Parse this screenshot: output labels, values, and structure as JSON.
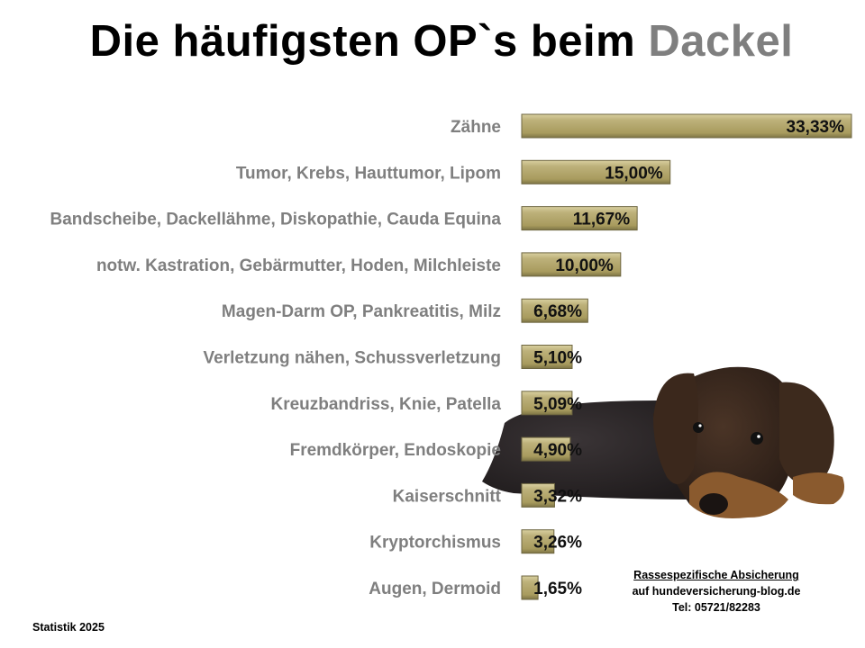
{
  "title": {
    "main": "Die häufigsten OP`s beim ",
    "accent": "Dackel"
  },
  "colors": {
    "bar": "#b5a96e",
    "bar_border": "#6e6640",
    "accent_title": "#7f7f7f",
    "category_text": "#7f7f7f"
  },
  "chart_data": {
    "type": "bar",
    "orientation": "horizontal",
    "categories": [
      "Zähne",
      "Tumor, Krebs, Hauttumor, Lipom",
      "Bandscheibe, Dackellähme, Diskopathie, Cauda Equina",
      "notw. Kastration, Gebärmutter, Hoden, Milchleiste",
      "Magen-Darm OP, Pankreatitis, Milz",
      "Verletzung nähen, Schussverletzung",
      "Kreuzbandriss, Knie, Patella",
      "Fremdkörper, Endoskopie",
      "Kaiserschnitt",
      "Kryptorchismus",
      "Augen, Dermoid"
    ],
    "values": [
      33.33,
      15.0,
      11.67,
      10.0,
      6.68,
      5.1,
      5.09,
      4.9,
      3.32,
      3.26,
      1.65
    ],
    "data_labels": [
      "33,33%",
      "15,00%",
      "11,67%",
      "10,00%",
      "6,68%",
      "5,10%",
      "5,09%",
      "4,90%",
      "3,32%",
      "3,26%",
      "1,65%"
    ],
    "unit": "%",
    "xlim": [
      0,
      33.33
    ],
    "grid": false,
    "axes_visible": false
  },
  "footer": {
    "source": "Statistik 2025",
    "contact_line1": "Rassespezifische  Absicherung",
    "contact_line2": "auf hundeversicherung-blog.de",
    "contact_line3": "Tel: 05721/82283"
  },
  "image": {
    "subject": "dachshund-photo"
  }
}
